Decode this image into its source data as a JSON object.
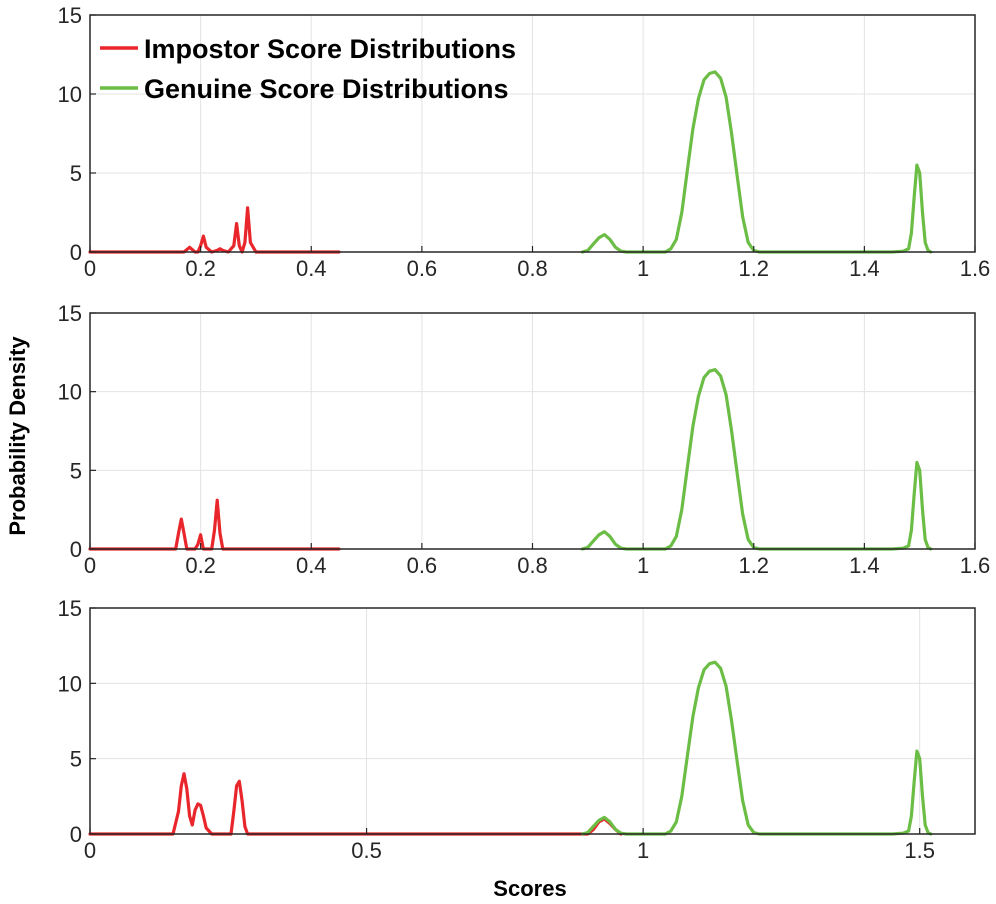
{
  "figure": {
    "ylabel": "Probability Density",
    "xlabel": "Scores",
    "colors": {
      "impostor": "#e8262b",
      "genuine": "#6bbd45"
    },
    "legend": {
      "placement": "top-left",
      "panel": 0
    }
  },
  "chart_data": [
    {
      "type": "line",
      "panel": 1,
      "xlim": [
        0,
        1.6
      ],
      "ylim": [
        0,
        15
      ],
      "xticks": [
        0,
        0.2,
        0.4,
        0.6,
        0.8,
        1,
        1.2,
        1.4,
        1.6
      ],
      "xtick_labels": [
        "0",
        "0.2",
        "0.4",
        "0.6",
        "0.8",
        "1",
        "1.2",
        "1.4",
        "1.6"
      ],
      "yticks": [
        0,
        5,
        10,
        15
      ],
      "ytick_labels": [
        "0",
        "5",
        "10",
        "15"
      ],
      "grid": true,
      "series": [
        {
          "name": "Impostor Score Distributions",
          "color": "#e8262b",
          "x": [
            0,
            0.17,
            0.18,
            0.19,
            0.195,
            0.2,
            0.205,
            0.21,
            0.22,
            0.23,
            0.235,
            0.24,
            0.25,
            0.26,
            0.265,
            0.27,
            0.275,
            0.28,
            0.285,
            0.29,
            0.3,
            0.45
          ],
          "y": [
            0,
            0,
            0.3,
            0,
            0,
            0.4,
            1.0,
            0.3,
            0,
            0.1,
            0.2,
            0.1,
            0,
            0.4,
            1.8,
            0.4,
            0,
            0.6,
            2.8,
            0.6,
            0,
            0
          ]
        },
        {
          "name": "Genuine Score Distributions",
          "color": "#6bbd45",
          "x": [
            0.89,
            0.9,
            0.91,
            0.92,
            0.93,
            0.94,
            0.95,
            0.96,
            0.97,
            1.04,
            1.05,
            1.06,
            1.07,
            1.08,
            1.09,
            1.1,
            1.11,
            1.12,
            1.13,
            1.14,
            1.15,
            1.16,
            1.17,
            1.18,
            1.19,
            1.2,
            1.21,
            1.45,
            1.47,
            1.48,
            1.485,
            1.49,
            1.495,
            1.5,
            1.505,
            1.51,
            1.515,
            1.52
          ],
          "y": [
            0,
            0.1,
            0.5,
            0.9,
            1.1,
            0.8,
            0.3,
            0.05,
            0,
            0,
            0.2,
            0.8,
            2.5,
            5.2,
            7.8,
            9.7,
            10.9,
            11.3,
            11.4,
            11.0,
            9.8,
            7.5,
            4.8,
            2.2,
            0.6,
            0.1,
            0,
            0,
            0.05,
            0.2,
            1.2,
            3.5,
            5.5,
            5.0,
            2.5,
            0.6,
            0.1,
            0
          ]
        }
      ]
    },
    {
      "type": "line",
      "panel": 2,
      "xlim": [
        0,
        1.6
      ],
      "ylim": [
        0,
        15
      ],
      "xticks": [
        0,
        0.2,
        0.4,
        0.6,
        0.8,
        1,
        1.2,
        1.4,
        1.6
      ],
      "xtick_labels": [
        "0",
        "0.2",
        "0.4",
        "0.6",
        "0.8",
        "1",
        "1.2",
        "1.4",
        "1.6"
      ],
      "yticks": [
        0,
        5,
        10,
        15
      ],
      "ytick_labels": [
        "0",
        "5",
        "10",
        "15"
      ],
      "grid": true,
      "series": [
        {
          "name": "Impostor Score Distributions",
          "color": "#e8262b",
          "x": [
            0,
            0.155,
            0.16,
            0.165,
            0.17,
            0.175,
            0.19,
            0.195,
            0.2,
            0.205,
            0.22,
            0.225,
            0.23,
            0.235,
            0.24,
            0.45
          ],
          "y": [
            0,
            0,
            1.0,
            1.9,
            1.0,
            0,
            0,
            0.3,
            0.9,
            0,
            0,
            1.2,
            3.1,
            1.0,
            0,
            0
          ]
        },
        {
          "name": "Genuine Score Distributions",
          "color": "#6bbd45",
          "x": [
            0.89,
            0.9,
            0.91,
            0.92,
            0.93,
            0.94,
            0.95,
            0.96,
            0.97,
            1.04,
            1.05,
            1.06,
            1.07,
            1.08,
            1.09,
            1.1,
            1.11,
            1.12,
            1.13,
            1.14,
            1.15,
            1.16,
            1.17,
            1.18,
            1.19,
            1.2,
            1.21,
            1.45,
            1.47,
            1.48,
            1.485,
            1.49,
            1.495,
            1.5,
            1.505,
            1.51,
            1.515,
            1.52
          ],
          "y": [
            0,
            0.1,
            0.5,
            0.9,
            1.1,
            0.8,
            0.3,
            0.05,
            0,
            0,
            0.2,
            0.8,
            2.5,
            5.2,
            7.8,
            9.7,
            10.9,
            11.3,
            11.4,
            11.0,
            9.8,
            7.5,
            4.8,
            2.2,
            0.6,
            0.1,
            0,
            0,
            0.05,
            0.2,
            1.2,
            3.5,
            5.5,
            5.0,
            2.5,
            0.6,
            0.1,
            0
          ]
        }
      ]
    },
    {
      "type": "line",
      "panel": 3,
      "xlim": [
        0,
        1.6
      ],
      "ylim": [
        0,
        15
      ],
      "xticks": [
        0,
        0.5,
        1,
        1.5
      ],
      "xtick_labels": [
        "0",
        "0.5",
        "1",
        "1.5"
      ],
      "yticks": [
        0,
        5,
        10,
        15
      ],
      "ytick_labels": [
        "0",
        "5",
        "10",
        "15"
      ],
      "grid": true,
      "series": [
        {
          "name": "Impostor Score Distributions",
          "color": "#e8262b",
          "x": [
            0,
            0.15,
            0.16,
            0.165,
            0.17,
            0.175,
            0.18,
            0.185,
            0.19,
            0.195,
            0.2,
            0.205,
            0.21,
            0.22,
            0.255,
            0.26,
            0.265,
            0.27,
            0.275,
            0.28,
            0.285,
            0.9,
            0.91,
            0.92,
            0.93,
            0.94,
            0.95,
            0.96
          ],
          "y": [
            0,
            0,
            1.5,
            3.2,
            4.0,
            3.0,
            1.2,
            0.6,
            1.6,
            2.0,
            1.9,
            1.2,
            0.4,
            0,
            0,
            1.5,
            3.2,
            3.5,
            2.2,
            0.5,
            0,
            0,
            0.3,
            0.8,
            1.0,
            0.7,
            0.3,
            0
          ]
        },
        {
          "name": "Genuine Score Distributions",
          "color": "#6bbd45",
          "x": [
            0.89,
            0.9,
            0.91,
            0.92,
            0.93,
            0.94,
            0.95,
            0.96,
            0.97,
            1.04,
            1.05,
            1.06,
            1.07,
            1.08,
            1.09,
            1.1,
            1.11,
            1.12,
            1.13,
            1.14,
            1.15,
            1.16,
            1.17,
            1.18,
            1.19,
            1.2,
            1.21,
            1.45,
            1.47,
            1.48,
            1.485,
            1.49,
            1.495,
            1.5,
            1.505,
            1.51,
            1.515,
            1.52
          ],
          "y": [
            0,
            0.1,
            0.5,
            0.9,
            1.1,
            0.8,
            0.3,
            0.05,
            0,
            0,
            0.2,
            0.8,
            2.5,
            5.2,
            7.8,
            9.7,
            10.9,
            11.3,
            11.4,
            11.0,
            9.8,
            7.5,
            4.8,
            2.2,
            0.6,
            0.1,
            0,
            0,
            0.05,
            0.2,
            1.2,
            3.5,
            5.5,
            5.0,
            2.5,
            0.6,
            0.1,
            0
          ]
        }
      ]
    }
  ]
}
